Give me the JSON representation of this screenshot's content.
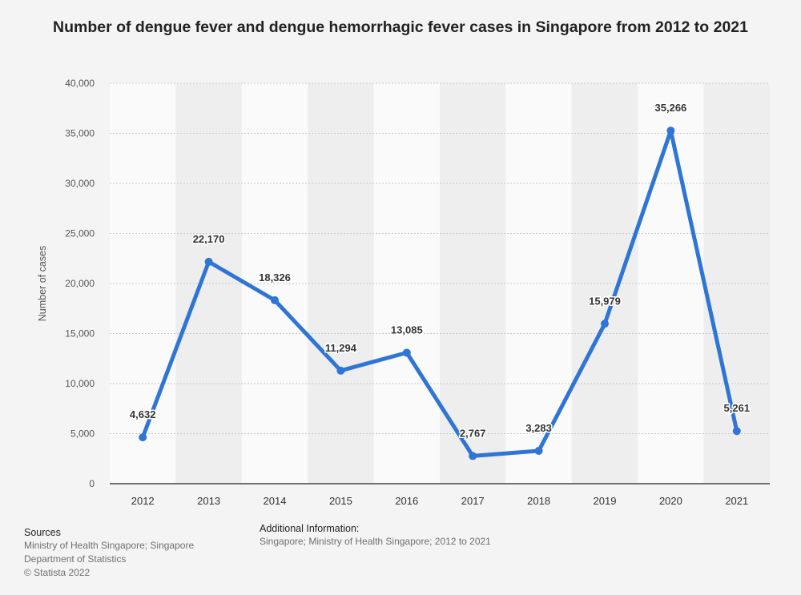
{
  "chart_data": {
    "type": "line",
    "title": "Number of dengue fever and dengue hemorrhagic fever cases in Singapore from 2012 to 2021",
    "xlabel": "",
    "ylabel": "Number of cases",
    "categories": [
      "2012",
      "2013",
      "2014",
      "2015",
      "2016",
      "2017",
      "2018",
      "2019",
      "2020",
      "2021"
    ],
    "series": [
      {
        "values": [
          4632,
          22170,
          18326,
          11294,
          13085,
          2767,
          3283,
          15979,
          35266,
          5261
        ],
        "labels": [
          "4,632",
          "22,170",
          "18,326",
          "11,294",
          "13,085",
          "2,767",
          "3,283",
          "15,979",
          "35,266",
          "5,261"
        ]
      }
    ],
    "ylim": [
      0,
      40000
    ],
    "yticks": [
      0,
      5000,
      10000,
      15000,
      20000,
      25000,
      30000,
      35000,
      40000
    ],
    "ytick_labels": [
      "0",
      "5,000",
      "10,000",
      "15,000",
      "20,000",
      "25,000",
      "30,000",
      "35,000",
      "40,000"
    ],
    "grid": true,
    "colors": {
      "line": "#2f75d6",
      "band_light": "#fafafa",
      "band_dark": "#eeeeee",
      "grid": "#c9c9c9",
      "axis": "#444444",
      "label": "#333333",
      "tick": "#555555"
    }
  },
  "footer": {
    "sources_title": "Sources",
    "sources_lines": [
      "Ministry of Health Singapore; Singapore",
      "Department of Statistics",
      "© Statista 2022"
    ],
    "additional_title": "Additional Information:",
    "additional_text": "Singapore; Ministry of Health Singapore; 2012 to 2021"
  }
}
